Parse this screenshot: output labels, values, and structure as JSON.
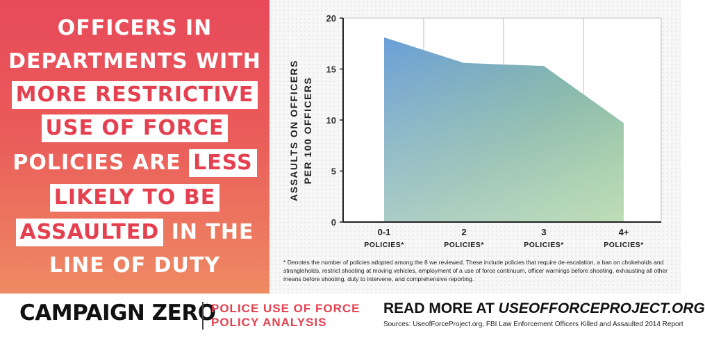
{
  "headline": {
    "lines": [
      {
        "pre": "OFFICERS IN",
        "hl": "",
        "post": ""
      },
      {
        "pre": "DEPARTMENTS WITH",
        "hl": "",
        "post": ""
      },
      {
        "pre": "",
        "hl": "MORE RESTRICTIVE",
        "post": ""
      },
      {
        "pre": "",
        "hl": "USE OF FORCE",
        "post": ""
      },
      {
        "pre": "POLICIES ARE ",
        "hl": "LESS",
        "post": ""
      },
      {
        "pre": "",
        "hl": "LIKELY TO BE",
        "post": ""
      },
      {
        "pre": "",
        "hl": "ASSAULTED",
        "post": " IN THE"
      },
      {
        "pre": "LINE OF DUTY",
        "hl": "",
        "post": ""
      }
    ]
  },
  "chart_data": {
    "type": "area",
    "ylabel": [
      "ASSAULTS ON OFFICERS",
      "PER 100 OFFICERS"
    ],
    "ylim": [
      0,
      20
    ],
    "yticks": [
      0,
      5,
      10,
      15,
      20
    ],
    "categories": [
      {
        "top": "0-1",
        "bottom": "POLICIES*"
      },
      {
        "top": "2",
        "bottom": "POLICIES*"
      },
      {
        "top": "3",
        "bottom": "POLICIES*"
      },
      {
        "top": "4+",
        "bottom": "POLICIES*"
      }
    ],
    "values": [
      18.1,
      15.6,
      15.3,
      9.7
    ],
    "colors": {
      "fill_top_left": "#6b9fd9",
      "fill_bottom_right": "#8dc48a"
    }
  },
  "footnote": "* Denotes the number of policies adopted among the 8 we reviewed. These include policies that require de-escalation, a ban on chokeholds and strangleholds, restrict shooting at moving vehicles, employment of a use of force continuum, officer warnings before shooting, exhausting all other means before shooting, duty to intervene, and comprehensive reporting.",
  "footer": {
    "brand": "CAMPAIGN ZERO",
    "subtitle_line1": "POLICE USE OF FORCE",
    "subtitle_line2": "POLICY ANALYSIS",
    "read_more_prefix": "READ MORE AT ",
    "read_more_url": "USEOFFORCEPROJECT.ORG",
    "sources": "Sources: UseofForceProject.org, FBI Law Enforcement Officers Killed and Assaulted 2014 Report"
  },
  "accent_color": "#e4404f"
}
